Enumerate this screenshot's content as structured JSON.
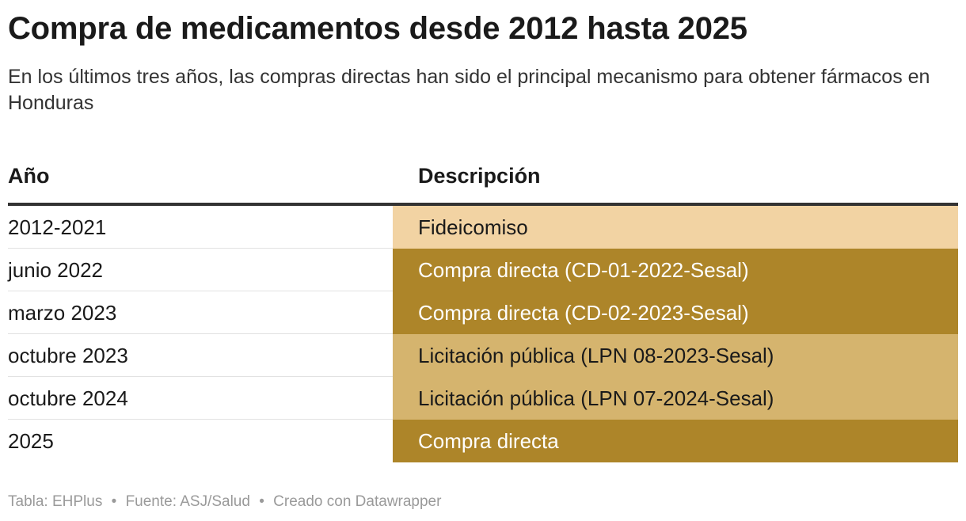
{
  "title": "Compra de medicamentos desde 2012 hasta 2025",
  "subtitle": "En los últimos tres años, las compras directas han sido el principal mecanismo para obtener fármacos en Honduras",
  "table": {
    "headers": {
      "year": "Año",
      "description": "Descripción"
    },
    "rows": [
      {
        "year": "2012-2021",
        "description": "Fideicomiso",
        "bg": "#f2d3a3",
        "fg": "#1a1a1a"
      },
      {
        "year": "junio 2022",
        "description": "Compra directa (CD-01-2022-Sesal)",
        "bg": "#ad8529",
        "fg": "#ffffff"
      },
      {
        "year": "marzo 2023",
        "description": "Compra directa (CD-02-2023-Sesal)",
        "bg": "#ad8529",
        "fg": "#ffffff"
      },
      {
        "year": "octubre 2023",
        "description": "Licitación pública (LPN 08-2023-Sesal)",
        "bg": "#d5b46e",
        "fg": "#1a1a1a"
      },
      {
        "year": "octubre 2024",
        "description": "Licitación pública (LPN 07-2024-Sesal)",
        "bg": "#d5b46e",
        "fg": "#1a1a1a"
      },
      {
        "year": "2025",
        "description": "Compra directa",
        "bg": "#ad8529",
        "fg": "#ffffff"
      }
    ]
  },
  "footer": {
    "table_credit": "Tabla: EHPlus",
    "source": "Fuente: ASJ/Salud",
    "tool": "Creado con Datawrapper",
    "separator": "•"
  }
}
